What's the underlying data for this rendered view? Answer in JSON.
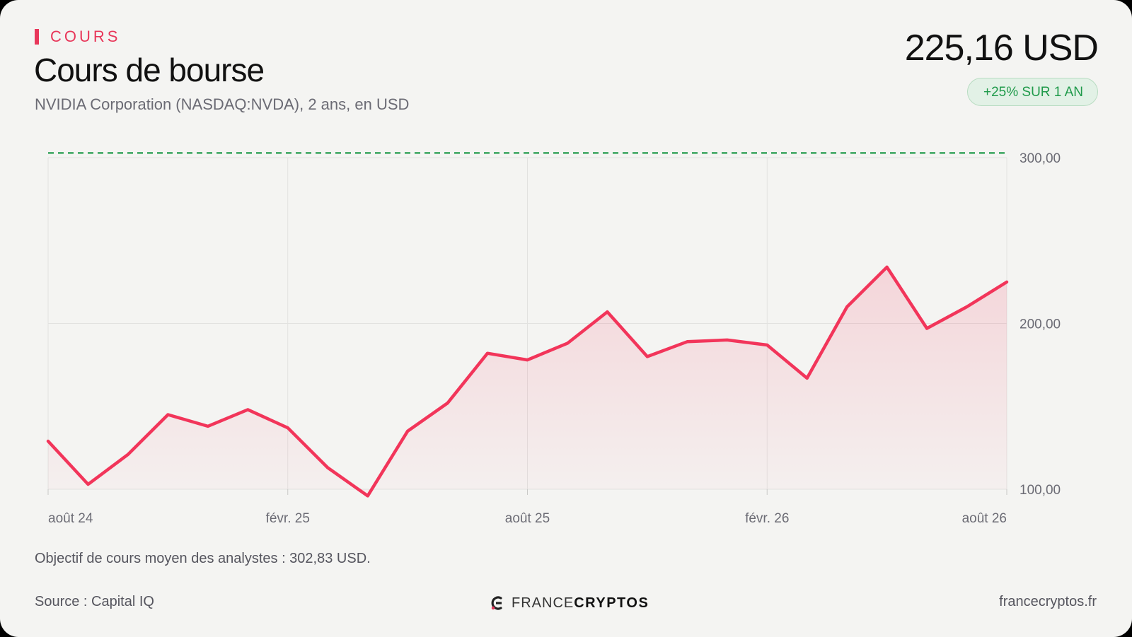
{
  "header": {
    "section_label": "COURS",
    "title": "Cours de bourse",
    "subtitle": "NVIDIA Corporation (NASDAQ:NVDA), 2 ans, en USD",
    "price": "225,16 USD",
    "badge": "+25% SUR 1 AN"
  },
  "footer": {
    "objective": "Objectif de cours moyen des analystes : 302,83 USD.",
    "source": "Source : Capital IQ",
    "site": "francecryptos.fr",
    "logo_part1": "FRANCE",
    "logo_part2": "CRYPTOS"
  },
  "colors": {
    "line": "#f2355a",
    "target_line": "#1f9a4a",
    "grid": "#e2e2e0",
    "badge_text": "#1f9a4a",
    "accent": "#e8375a"
  },
  "chart_data": {
    "type": "line",
    "title": "Cours de bourse",
    "ylim": [
      100,
      300
    ],
    "y_ticks": [
      100,
      200,
      300
    ],
    "y_tick_labels": [
      "100,00",
      "200,00",
      "300,00"
    ],
    "x_ticks": [
      "2024-08",
      "2025-02",
      "2025-08",
      "2026-02",
      "2026-08"
    ],
    "x_tick_labels": [
      "août 24",
      "févr. 25",
      "août 25",
      "févr. 26",
      "août 26"
    ],
    "target_line": 302.83,
    "grid": true,
    "y_axis_position": "right",
    "fill": "gradient-under-line",
    "series": [
      {
        "x": [
          "2024-08",
          "2024-09",
          "2024-10",
          "2024-11",
          "2024-12",
          "2025-01",
          "2025-02",
          "2025-03",
          "2025-04",
          "2025-05",
          "2025-06",
          "2025-07",
          "2025-08",
          "2025-09",
          "2025-10",
          "2025-11",
          "2025-12",
          "2026-01",
          "2026-02",
          "2026-03",
          "2026-04",
          "2026-05",
          "2026-06",
          "2026-07",
          "2026-08"
        ],
        "y": [
          129,
          103,
          121,
          145,
          138,
          148,
          137,
          113,
          96,
          135,
          152,
          182,
          178,
          188,
          207,
          180,
          189,
          190,
          187,
          167,
          210,
          234,
          197,
          210,
          225
        ]
      }
    ]
  }
}
